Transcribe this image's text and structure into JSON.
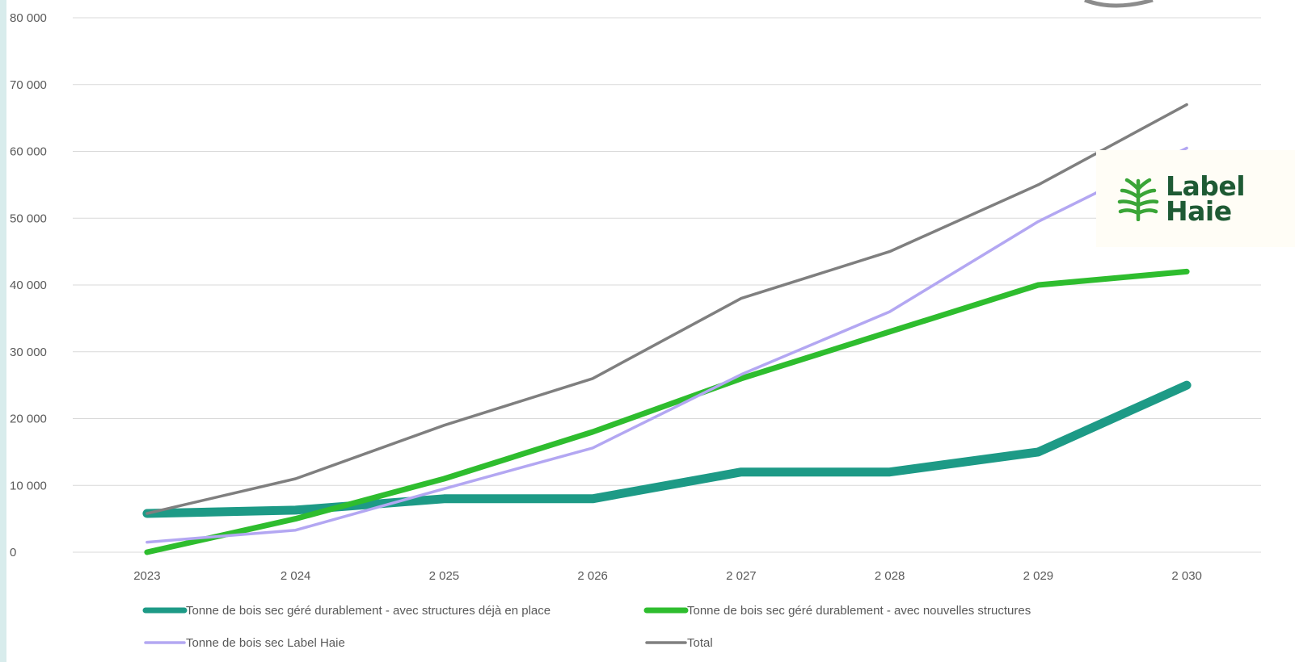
{
  "colors": {
    "left_edge": "#d8ecec",
    "grid": "#d9d9d9",
    "logo_green": "#3aa537",
    "logo_text": "#1e5a34",
    "corner_arc": "#8c8c8c"
  },
  "logo": {
    "line1": "Label",
    "line2": "Haie",
    "icon": "leaf-fan-icon"
  },
  "chart_data": {
    "type": "line",
    "title": "",
    "xlabel": "",
    "ylabel": "",
    "categories": [
      "2023",
      "2 024",
      "2 025",
      "2 026",
      "2 027",
      "2 028",
      "2 029",
      "2 030"
    ],
    "ylim": [
      0,
      80000
    ],
    "yticks": [
      0,
      10000,
      20000,
      30000,
      40000,
      50000,
      60000,
      70000,
      80000
    ],
    "ytick_labels": [
      "0",
      "10 000",
      "20 000",
      "30 000",
      "40 000",
      "50 000",
      "60 000",
      "70 000",
      "80 000"
    ],
    "grid": true,
    "legend_position": "bottom",
    "series": [
      {
        "name": "Tonne de bois sec géré durablement - avec structures déjà en place",
        "color": "#1d9a86",
        "width": 11,
        "values": [
          5800,
          6300,
          8000,
          8000,
          12000,
          12000,
          15000,
          25000
        ]
      },
      {
        "name": "Tonne de bois sec géré durablement - avec nouvelles structures",
        "color": "#2ebd2e",
        "width": 7,
        "values": [
          0,
          5000,
          11000,
          18000,
          26000,
          33000,
          40000,
          42000
        ]
      },
      {
        "name": "Tonne de bois sec Label Haie",
        "color": "#b3a7f2",
        "width": 3.5,
        "values": [
          1500,
          3300,
          9500,
          15600,
          26600,
          36000,
          49500,
          60500
        ]
      },
      {
        "name": "Total",
        "color": "#7f7f7f",
        "width": 3.5,
        "values": [
          5800,
          11000,
          19000,
          26000,
          38000,
          45000,
          55000,
          67000
        ]
      }
    ]
  }
}
